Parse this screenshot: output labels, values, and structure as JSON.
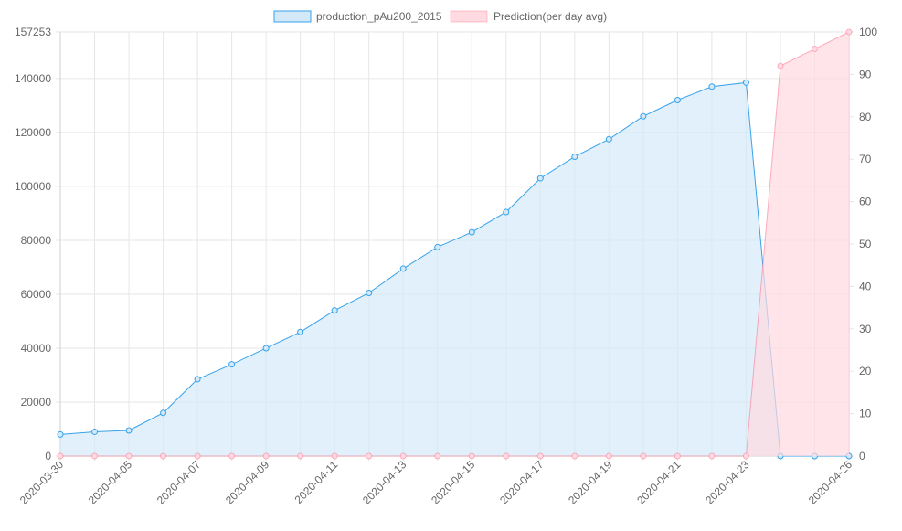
{
  "chart_data": {
    "type": "area",
    "x": [
      "2020-03-30",
      "2020-04-04",
      "2020-04-05",
      "2020-04-06",
      "2020-04-07",
      "2020-04-08",
      "2020-04-09",
      "2020-04-10",
      "2020-04-11",
      "2020-04-12",
      "2020-04-13",
      "2020-04-14",
      "2020-04-15",
      "2020-04-16",
      "2020-04-17",
      "2020-04-18",
      "2020-04-19",
      "2020-04-20",
      "2020-04-21",
      "2020-04-22",
      "2020-04-23",
      "2020-04-24",
      "2020-04-25",
      "2020-04-26"
    ],
    "x_tick_labels": [
      "2020-03-30",
      "2020-04-05",
      "2020-04-07",
      "2020-04-09",
      "2020-04-11",
      "2020-04-13",
      "2020-04-15",
      "2020-04-17",
      "2020-04-19",
      "2020-04-21",
      "2020-04-23",
      "2020-04-26"
    ],
    "series": [
      {
        "name": "production_pAu200_2015",
        "axis": "left",
        "color": "#36a2eb",
        "fill": "#d4e9f8",
        "values": [
          8000,
          9000,
          9500,
          16000,
          28500,
          34000,
          40000,
          46000,
          54000,
          60500,
          69500,
          77500,
          83000,
          90500,
          103000,
          111000,
          117500,
          126000,
          132000,
          137000,
          138500,
          0,
          0,
          0
        ]
      },
      {
        "name": "Prediction(per day avg)",
        "axis": "right",
        "color": "#ff6384",
        "fill": "#ffdae1",
        "values": [
          0,
          0,
          0,
          0,
          0,
          0,
          0,
          0,
          0,
          0,
          0,
          0,
          0,
          0,
          0,
          0,
          0,
          0,
          0,
          0,
          0,
          92,
          96,
          100
        ]
      }
    ],
    "y_left": {
      "min": 0,
      "max": 157253,
      "ticks": [
        0,
        20000,
        40000,
        60000,
        80000,
        100000,
        120000,
        140000,
        157253
      ]
    },
    "y_right": {
      "min": 0,
      "max": 100,
      "ticks": [
        0,
        10,
        20,
        30,
        40,
        50,
        60,
        70,
        80,
        90,
        100
      ]
    },
    "grid": true,
    "legend_position": "top"
  }
}
